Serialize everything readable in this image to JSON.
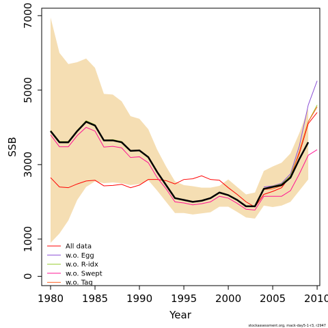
{
  "chart_data": {
    "type": "line",
    "xlabel": "Year",
    "ylabel": "SSB",
    "xlim": [
      1979,
      2010.3
    ],
    "ylim": [
      -250,
      7200
    ],
    "x_ticks": [
      1980,
      1985,
      1990,
      1995,
      2000,
      2005,
      2010
    ],
    "y_ticks": [
      0,
      1000,
      3000,
      5000,
      7000
    ],
    "grid": false,
    "legend_position": "bottom-left",
    "credit": "stockassessment.org, mack-day5-1-r3, r2947",
    "band": {
      "color": "#f5deb3",
      "x": [
        1980,
        1981,
        1982,
        1983,
        1984,
        1985,
        1986,
        1987,
        1988,
        1989,
        1990,
        1991,
        1992,
        1993,
        1994,
        1995,
        1996,
        1997,
        1998,
        1999,
        2000,
        2001,
        2002,
        2003,
        2004,
        2005,
        2006,
        2007,
        2008,
        2009
      ],
      "upper": [
        6950,
        6000,
        5700,
        5750,
        5850,
        5600,
        4900,
        4880,
        4700,
        4300,
        4230,
        3950,
        3400,
        2950,
        2550,
        2450,
        2420,
        2380,
        2380,
        2430,
        2600,
        2400,
        2200,
        2250,
        2830,
        2950,
        3050,
        3300,
        3850,
        4500
      ],
      "lower": [
        900,
        1150,
        1500,
        2050,
        2400,
        2550,
        2500,
        2520,
        2500,
        2450,
        2480,
        2580,
        2300,
        2000,
        1700,
        1700,
        1660,
        1690,
        1720,
        1870,
        1870,
        1730,
        1580,
        1550,
        1900,
        1860,
        1900,
        2000,
        2300,
        2600
      ]
    },
    "main_line": {
      "color": "#000000",
      "x": [
        1980,
        1981,
        1982,
        1983,
        1984,
        1985,
        1986,
        1987,
        1988,
        1989,
        1990,
        1991,
        1992,
        1993,
        1994,
        1995,
        1996,
        1997,
        1998,
        1999,
        2000,
        2001,
        2002,
        2003,
        2004,
        2005,
        2006,
        2007,
        2008,
        2009
      ],
      "values": [
        3900,
        3600,
        3600,
        3900,
        4150,
        4050,
        3650,
        3650,
        3600,
        3370,
        3380,
        3200,
        2800,
        2450,
        2100,
        2050,
        2000,
        2030,
        2100,
        2250,
        2180,
        2050,
        1880,
        1880,
        2350,
        2400,
        2450,
        2650,
        3150,
        3600
      ]
    },
    "series": [
      {
        "name": "All data",
        "color": "#ff0000",
        "x": [
          1980,
          1981,
          1982,
          1983,
          1984,
          1985,
          1986,
          1987,
          1988,
          1989,
          1990,
          1991,
          1992,
          1993,
          1994,
          1995,
          1996,
          1997,
          1998,
          1999,
          2000,
          2001,
          2002,
          2003,
          2004,
          2005,
          2006,
          2007,
          2008,
          2009,
          2010
        ],
        "values": [
          2650,
          2400,
          2380,
          2480,
          2560,
          2580,
          2430,
          2440,
          2470,
          2380,
          2450,
          2600,
          2600,
          2570,
          2480,
          2600,
          2620,
          2700,
          2600,
          2580,
          2380,
          2200,
          2000,
          1860,
          2200,
          2280,
          2380,
          2700,
          3300,
          4100,
          4400
        ]
      },
      {
        "name": "w.o. Egg",
        "color": "#8a4fd6",
        "x": [
          2004,
          2005,
          2006,
          2007,
          2008,
          2009,
          2010
        ],
        "values": [
          2400,
          2430,
          2500,
          2750,
          3500,
          4600,
          5250
        ]
      },
      {
        "name": "w.o. R-idx",
        "color": "#9acd32",
        "x": [
          1980,
          1981,
          1982,
          1983,
          1984,
          1985,
          1986,
          1987,
          1988,
          1989,
          1990,
          1991,
          1992,
          1993,
          1994,
          1995,
          1996,
          1997,
          1998,
          1999,
          2000,
          2001,
          2002,
          2003,
          2004,
          2005,
          2006,
          2007,
          2008,
          2009,
          2010
        ],
        "values": [
          3920,
          3620,
          3620,
          3920,
          4180,
          4070,
          3660,
          3670,
          3620,
          3380,
          3390,
          3210,
          2810,
          2460,
          2110,
          2060,
          2010,
          2040,
          2110,
          2260,
          2190,
          2060,
          1890,
          1890,
          2360,
          2420,
          2480,
          2700,
          3350,
          4150,
          4600
        ]
      },
      {
        "name": "w.o. Swept",
        "color": "#ff1493",
        "x": [
          1980,
          1981,
          1982,
          1983,
          1984,
          1985,
          1986,
          1987,
          1988,
          1989,
          1990,
          1991,
          1992,
          1993,
          1994,
          1995,
          1996,
          1997,
          1998,
          1999,
          2000,
          2001,
          2002,
          2003,
          2004,
          2005,
          2006,
          2007,
          2008,
          2009,
          2010
        ],
        "values": [
          3800,
          3480,
          3480,
          3780,
          4000,
          3900,
          3470,
          3490,
          3450,
          3190,
          3210,
          3050,
          2650,
          2350,
          2000,
          1970,
          1920,
          1950,
          2000,
          2150,
          2100,
          1960,
          1800,
          1780,
          2150,
          2150,
          2150,
          2300,
          2750,
          3250,
          3400
        ]
      },
      {
        "name": "w.o. Tag",
        "color": "#ff5a1a",
        "x": [
          2004,
          2005,
          2006,
          2007,
          2008,
          2009,
          2010
        ],
        "values": [
          2330,
          2350,
          2430,
          2650,
          3350,
          4150,
          4550
        ]
      }
    ]
  }
}
